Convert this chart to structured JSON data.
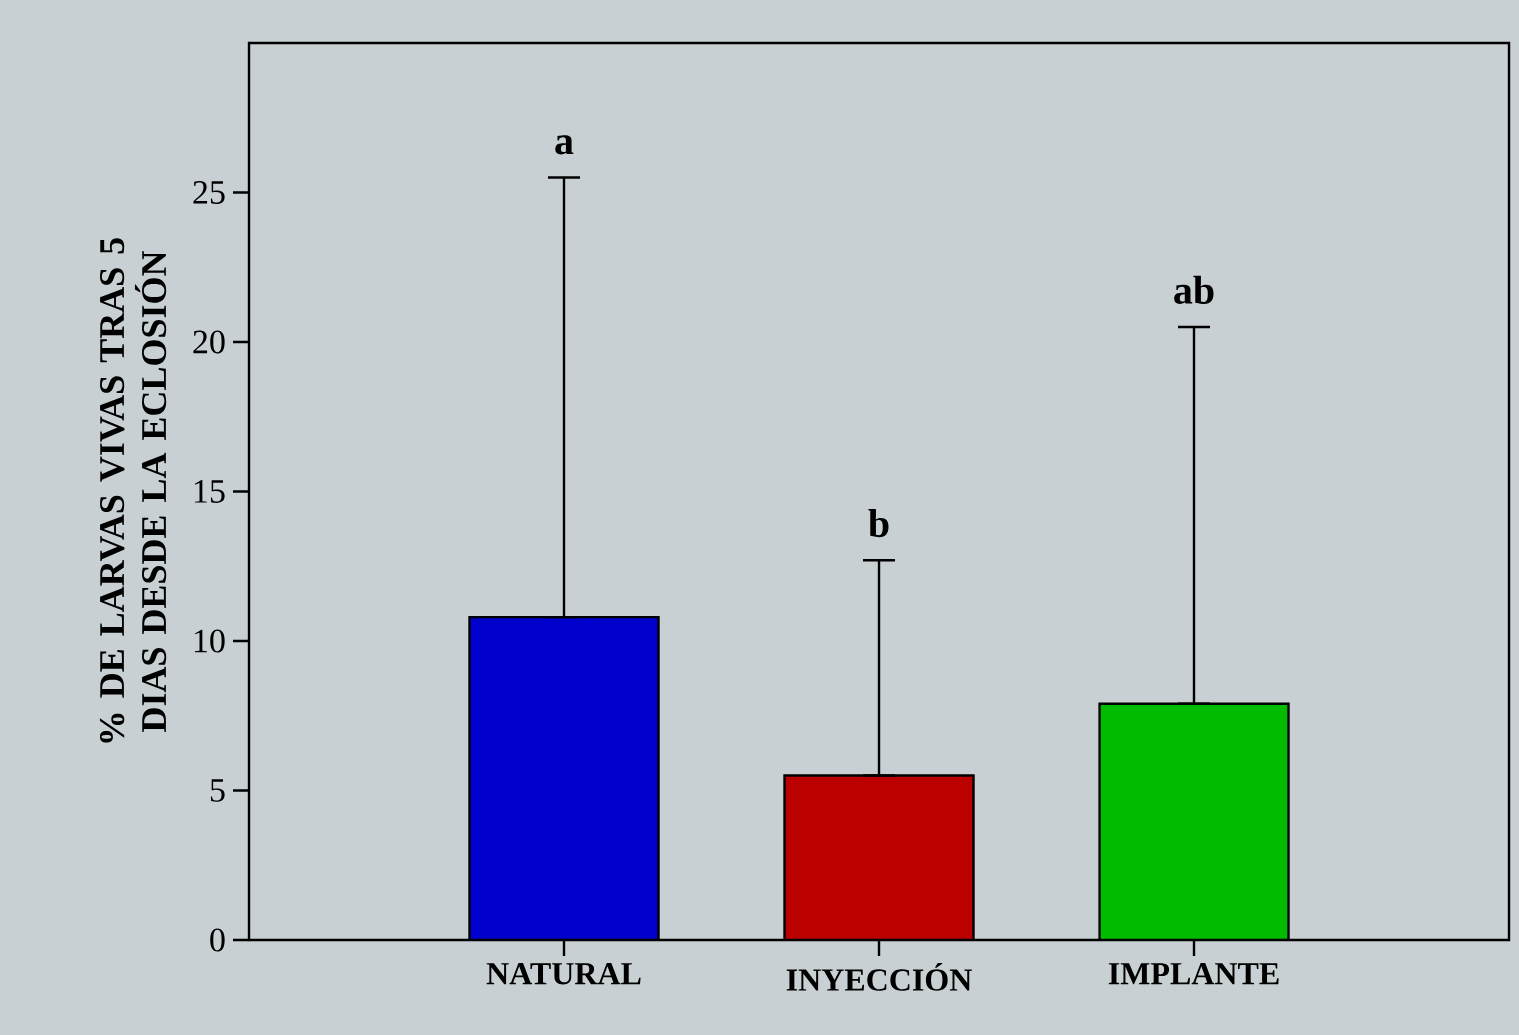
{
  "chart_data": {
    "type": "bar",
    "ylabel": "% DE LARVAS VIVAS TRAS 5 DIAS DESDE LA ECLOSIÓN",
    "categories": [
      "NATURAL",
      "INYECCIÓN",
      "IMPLANTE"
    ],
    "values": [
      10.8,
      5.5,
      7.9
    ],
    "colors": [
      "#0000cc",
      "#bb0000",
      "#00bb00"
    ],
    "errors": [
      [
        10.8,
        25.5
      ],
      [
        5.5,
        12.7
      ],
      [
        7.9,
        20.5
      ]
    ],
    "ylim": [
      0,
      30
    ],
    "yticks": [
      0,
      5,
      10,
      15,
      20,
      25
    ],
    "annotations": [
      "a",
      "b",
      "ab"
    ]
  }
}
